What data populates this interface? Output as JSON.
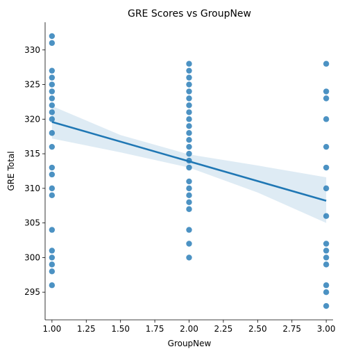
{
  "chart_data": {
    "type": "scatter",
    "title": "GRE Scores vs GroupNew",
    "xlabel": "GroupNew",
    "ylabel": "GRE Total",
    "xlim": [
      0.95,
      3.05
    ],
    "ylim": [
      291,
      334
    ],
    "xticks": [
      1.0,
      1.25,
      1.5,
      1.75,
      2.0,
      2.25,
      2.5,
      2.75,
      3.0
    ],
    "xtick_labels": [
      "1.00",
      "1.25",
      "1.50",
      "1.75",
      "2.00",
      "2.25",
      "2.50",
      "2.75",
      "3.00"
    ],
    "yticks": [
      295,
      300,
      305,
      310,
      315,
      320,
      325,
      330
    ],
    "ytick_labels": [
      "295",
      "300",
      "305",
      "310",
      "315",
      "320",
      "325",
      "330"
    ],
    "grid": false,
    "colors": {
      "points": "#1f77b4",
      "regression_line": "#1f77b4",
      "confidence_band": "#1f77b4"
    },
    "points": [
      {
        "x": 1,
        "y": 332
      },
      {
        "x": 1,
        "y": 331
      },
      {
        "x": 1,
        "y": 327
      },
      {
        "x": 1,
        "y": 326
      },
      {
        "x": 1,
        "y": 325
      },
      {
        "x": 1,
        "y": 324
      },
      {
        "x": 1,
        "y": 323
      },
      {
        "x": 1,
        "y": 322
      },
      {
        "x": 1,
        "y": 321
      },
      {
        "x": 1,
        "y": 320
      },
      {
        "x": 1,
        "y": 318
      },
      {
        "x": 1,
        "y": 316
      },
      {
        "x": 1,
        "y": 313
      },
      {
        "x": 1,
        "y": 312
      },
      {
        "x": 1,
        "y": 310
      },
      {
        "x": 1,
        "y": 309
      },
      {
        "x": 1,
        "y": 304
      },
      {
        "x": 1,
        "y": 301
      },
      {
        "x": 1,
        "y": 300
      },
      {
        "x": 1,
        "y": 299
      },
      {
        "x": 1,
        "y": 298
      },
      {
        "x": 1,
        "y": 296
      },
      {
        "x": 2,
        "y": 328
      },
      {
        "x": 2,
        "y": 327
      },
      {
        "x": 2,
        "y": 326
      },
      {
        "x": 2,
        "y": 325
      },
      {
        "x": 2,
        "y": 324
      },
      {
        "x": 2,
        "y": 323
      },
      {
        "x": 2,
        "y": 322
      },
      {
        "x": 2,
        "y": 321
      },
      {
        "x": 2,
        "y": 320
      },
      {
        "x": 2,
        "y": 319
      },
      {
        "x": 2,
        "y": 318
      },
      {
        "x": 2,
        "y": 317
      },
      {
        "x": 2,
        "y": 316
      },
      {
        "x": 2,
        "y": 315
      },
      {
        "x": 2,
        "y": 314
      },
      {
        "x": 2,
        "y": 313
      },
      {
        "x": 2,
        "y": 311
      },
      {
        "x": 2,
        "y": 310
      },
      {
        "x": 2,
        "y": 309
      },
      {
        "x": 2,
        "y": 308
      },
      {
        "x": 2,
        "y": 307
      },
      {
        "x": 2,
        "y": 304
      },
      {
        "x": 2,
        "y": 302
      },
      {
        "x": 2,
        "y": 300
      },
      {
        "x": 3,
        "y": 328
      },
      {
        "x": 3,
        "y": 324
      },
      {
        "x": 3,
        "y": 323
      },
      {
        "x": 3,
        "y": 320
      },
      {
        "x": 3,
        "y": 316
      },
      {
        "x": 3,
        "y": 313
      },
      {
        "x": 3,
        "y": 310
      },
      {
        "x": 3,
        "y": 306
      },
      {
        "x": 3,
        "y": 302
      },
      {
        "x": 3,
        "y": 301
      },
      {
        "x": 3,
        "y": 300
      },
      {
        "x": 3,
        "y": 299
      },
      {
        "x": 3,
        "y": 296
      },
      {
        "x": 3,
        "y": 295
      },
      {
        "x": 3,
        "y": 293
      }
    ],
    "regression_line": {
      "x": [
        1.0,
        3.0
      ],
      "y": [
        319.6,
        308.2
      ]
    },
    "confidence_band": {
      "x": [
        1.0,
        1.5,
        2.0,
        2.5,
        3.0
      ],
      "upper": [
        321.9,
        317.7,
        314.9,
        313.3,
        311.6
      ],
      "lower": [
        317.2,
        315.2,
        313.0,
        309.4,
        305.0
      ]
    }
  }
}
